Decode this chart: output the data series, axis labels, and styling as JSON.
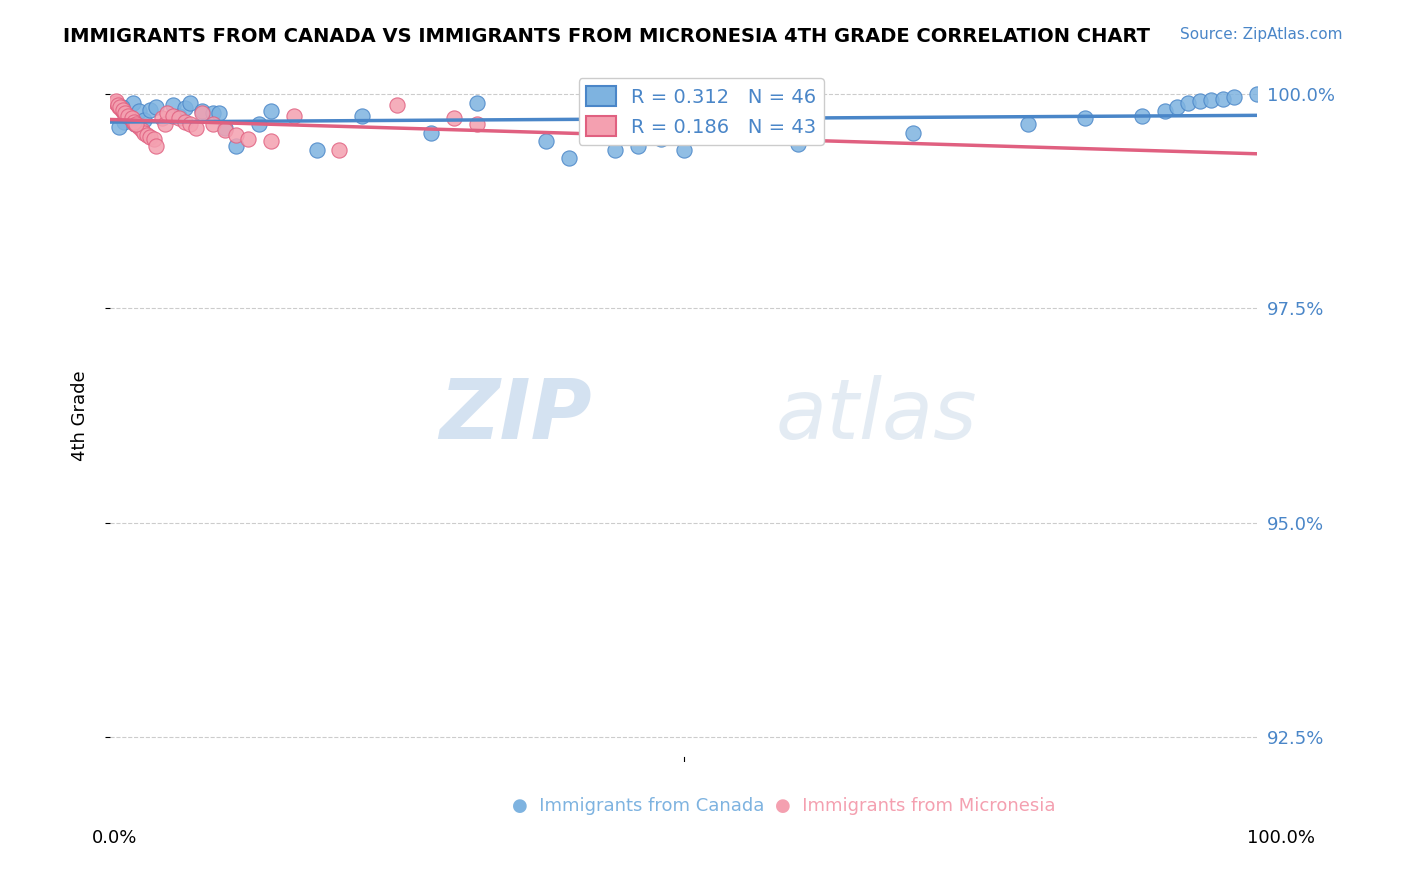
{
  "title": "IMMIGRANTS FROM CANADA VS IMMIGRANTS FROM MICRONESIA 4TH GRADE CORRELATION CHART",
  "source": "Source: ZipAtlas.com",
  "ylabel": "4th Grade",
  "ylabel_values": [
    1.0,
    0.975,
    0.95,
    0.925
  ],
  "xlim": [
    0.0,
    1.0
  ],
  "ylim": [
    0.922,
    1.003
  ],
  "legend_canada": "R = 0.312   N = 46",
  "legend_micronesia": "R = 0.186   N = 43",
  "canada_color": "#7eb3e0",
  "micronesia_color": "#f4a0b0",
  "trendline_canada_color": "#4a86c8",
  "trendline_micronesia_color": "#e06080",
  "watermark_zip": "ZIP",
  "watermark_atlas": "atlas",
  "canada_points_x": [
    0.02,
    0.025,
    0.03,
    0.01,
    0.015,
    0.022,
    0.018,
    0.012,
    0.008,
    0.035,
    0.04,
    0.055,
    0.06,
    0.065,
    0.07,
    0.08,
    0.09,
    0.095,
    0.1,
    0.11,
    0.13,
    0.14,
    0.18,
    0.22,
    0.28,
    0.32,
    0.38,
    0.4,
    0.42,
    0.44,
    0.46,
    0.48,
    0.5,
    0.6,
    0.7,
    0.8,
    0.85,
    0.9,
    0.92,
    0.93,
    0.94,
    0.95,
    0.96,
    0.97,
    0.98,
    1.0
  ],
  "canada_points_y": [
    0.999,
    0.998,
    0.997,
    0.9985,
    0.9975,
    0.9965,
    0.9972,
    0.9968,
    0.9962,
    0.9982,
    0.9985,
    0.9988,
    0.9975,
    0.9984,
    0.999,
    0.998,
    0.9978,
    0.9978,
    0.996,
    0.994,
    0.9965,
    0.998,
    0.9935,
    0.9975,
    0.9955,
    0.999,
    0.9945,
    0.9925,
    0.996,
    0.9935,
    0.994,
    0.9948,
    0.9935,
    0.9942,
    0.9955,
    0.9965,
    0.9972,
    0.9975,
    0.998,
    0.9985,
    0.999,
    0.9992,
    0.9993,
    0.9995,
    0.9997,
    1.0
  ],
  "micronesia_points_x": [
    0.005,
    0.008,
    0.01,
    0.012,
    0.015,
    0.018,
    0.02,
    0.022,
    0.025,
    0.028,
    0.03,
    0.032,
    0.035,
    0.038,
    0.04,
    0.045,
    0.048,
    0.05,
    0.055,
    0.06,
    0.065,
    0.07,
    0.075,
    0.08,
    0.09,
    0.1,
    0.11,
    0.12,
    0.14,
    0.16,
    0.2,
    0.25,
    0.3,
    0.32,
    0.005,
    0.007,
    0.009,
    0.011,
    0.013,
    0.016,
    0.019,
    0.021,
    0.023
  ],
  "micronesia_points_y": [
    0.999,
    0.9985,
    0.9982,
    0.9978,
    0.9975,
    0.9972,
    0.9968,
    0.9965,
    0.9962,
    0.9958,
    0.9955,
    0.9952,
    0.995,
    0.9948,
    0.994,
    0.9972,
    0.9965,
    0.9978,
    0.9975,
    0.9972,
    0.9968,
    0.9965,
    0.996,
    0.9978,
    0.9965,
    0.9958,
    0.9952,
    0.9948,
    0.9945,
    0.9975,
    0.9935,
    0.9988,
    0.9972,
    0.9965,
    0.9992,
    0.9988,
    0.9985,
    0.9982,
    0.9978,
    0.9975,
    0.9972,
    0.9968,
    0.9965
  ]
}
